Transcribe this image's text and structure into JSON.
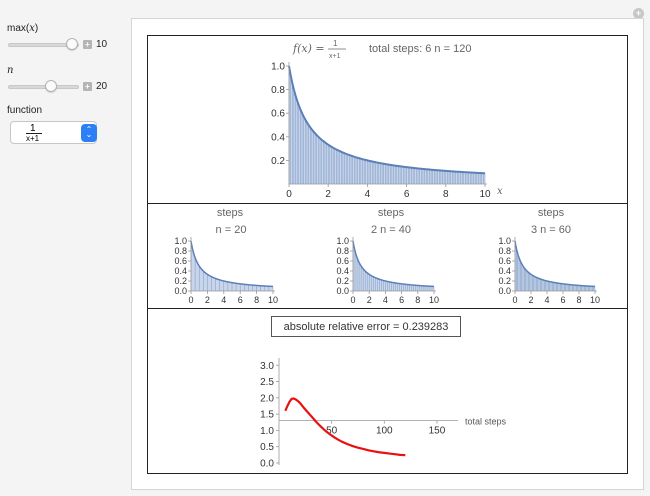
{
  "controls": {
    "max_label": "max(",
    "max_var": "x",
    "max_close": ")",
    "max_value": "10",
    "max_fraction": 0.9,
    "n_label": "n",
    "n_value": "20",
    "n_fraction": 0.6,
    "function_label": "function",
    "function_num": "1",
    "function_den": "x+1",
    "up_glyph": "⌃",
    "down_glyph": "⌄",
    "plus_glyph": "+",
    "reset_glyph": "+"
  },
  "colors": {
    "curve": "#5b7fb7",
    "fill": "#c9d6ea",
    "error": "#e8110f",
    "accent": "#2d7ff6"
  },
  "main_plot": {
    "fx_prefix": "f(x) = ",
    "fx_num": "1",
    "fx_den": "x+1",
    "total_label": "total steps: 6 n = 120"
  },
  "small_plots": [
    {
      "title": "steps",
      "subtitle": "n = 20"
    },
    {
      "title": "steps",
      "subtitle": "2 n = 40"
    },
    {
      "title": "steps",
      "subtitle": "3 n = 60"
    }
  ],
  "error_box": "absolute relative error = 0.239283",
  "chart_data": [
    {
      "type": "area",
      "function": "1/(x+1)",
      "x_range": [
        0,
        10
      ],
      "xlim": [
        0,
        10
      ],
      "ylim": [
        0,
        1
      ],
      "xticks": [
        "0",
        "2",
        "4",
        "6",
        "8",
        "10"
      ],
      "yticks": [
        "0.2",
        "0.4",
        "0.6",
        "0.8",
        "1.0"
      ],
      "xlabel": "x",
      "steps": 120
    },
    {
      "type": "area",
      "function": "1/(x+1)",
      "x_range": [
        0,
        10
      ],
      "ylim": [
        0,
        1
      ],
      "xticks": [
        "0",
        "2",
        "4",
        "6",
        "8",
        "10"
      ],
      "yticks": [
        "0.0",
        "0.2",
        "0.4",
        "0.6",
        "0.8",
        "1.0"
      ],
      "steps": 20
    },
    {
      "type": "area",
      "function": "1/(x+1)",
      "x_range": [
        0,
        10
      ],
      "ylim": [
        0,
        1
      ],
      "xticks": [
        "0",
        "2",
        "4",
        "6",
        "8",
        "10"
      ],
      "yticks": [
        "0.0",
        "0.2",
        "0.4",
        "0.6",
        "0.8",
        "1.0"
      ],
      "steps": 40
    },
    {
      "type": "area",
      "function": "1/(x+1)",
      "x_range": [
        0,
        10
      ],
      "ylim": [
        0,
        1
      ],
      "xticks": [
        "0",
        "2",
        "4",
        "6",
        "8",
        "10"
      ],
      "yticks": [
        "0.0",
        "0.2",
        "0.4",
        "0.6",
        "0.8",
        "1.0"
      ],
      "steps": 60
    },
    {
      "type": "line",
      "xlabel": "total steps",
      "ylabel": "",
      "xlim": [
        0,
        170
      ],
      "ylim": [
        0,
        3.1
      ],
      "axis_cross_y": 1.3,
      "xticks": [
        "50",
        "100",
        "150"
      ],
      "yticks": [
        "0.0",
        "0.5",
        "1.0",
        "1.5",
        "2.0",
        "2.5",
        "3.0"
      ],
      "x": [
        6,
        8,
        10,
        12,
        14,
        16,
        18,
        20,
        22,
        24,
        27,
        30,
        33,
        36,
        40,
        44,
        48,
        52,
        56,
        60,
        65,
        70,
        75,
        80,
        85,
        90,
        95,
        100,
        105,
        110,
        115,
        120
      ],
      "y": [
        1.6,
        1.75,
        1.88,
        1.97,
        1.98,
        1.95,
        1.9,
        1.84,
        1.76,
        1.68,
        1.57,
        1.46,
        1.35,
        1.24,
        1.11,
        0.99,
        0.89,
        0.8,
        0.72,
        0.65,
        0.58,
        0.52,
        0.47,
        0.43,
        0.39,
        0.36,
        0.33,
        0.31,
        0.29,
        0.27,
        0.25,
        0.24
      ]
    }
  ]
}
